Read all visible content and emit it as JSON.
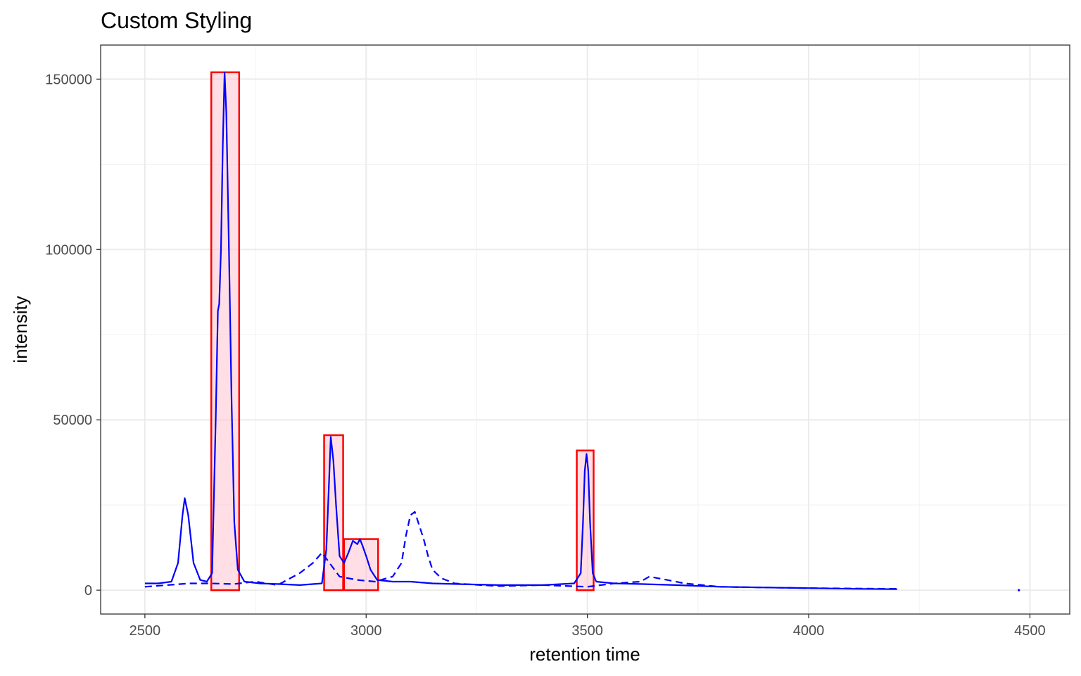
{
  "chart_data": {
    "type": "line",
    "title": "Custom Styling",
    "xlabel": "retention time",
    "ylabel": "intensity",
    "xlim": [
      2400,
      4590
    ],
    "ylim": [
      -7000,
      160000
    ],
    "x_ticks": [
      "2500",
      "3000",
      "3500",
      "4000",
      "4500"
    ],
    "y_ticks": [
      "0",
      "50000",
      "100000",
      "150000"
    ],
    "grid": true,
    "legend": "none",
    "colors": {
      "line": "#0000ff",
      "rect_stroke": "#ff0000",
      "rect_fill": "#ffc0cb"
    },
    "series": [
      {
        "style": "solid",
        "x": [
          2500,
          2530,
          2560,
          2575,
          2585,
          2590,
          2598,
          2610,
          2625,
          2640,
          2652,
          2660,
          2665,
          2668,
          2672,
          2676,
          2680,
          2684,
          2690,
          2696,
          2702,
          2710,
          2725,
          2760,
          2800,
          2850,
          2900,
          2910,
          2915,
          2920,
          2926,
          2932,
          2940,
          2950,
          2960,
          2970,
          2975,
          2980,
          2986,
          2992,
          3000,
          3010,
          3025,
          3060,
          3100,
          3150,
          3200,
          3300,
          3400,
          3470,
          3485,
          3490,
          3494,
          3498,
          3502,
          3506,
          3512,
          3520,
          3560,
          3620,
          3700,
          3800,
          3900,
          4000,
          4100,
          4200
        ],
        "y": [
          2000,
          2000,
          2500,
          8000,
          22000,
          27000,
          22000,
          8000,
          3000,
          2500,
          5000,
          50000,
          82000,
          84000,
          100000,
          130000,
          152000,
          140000,
          100000,
          55000,
          20000,
          6000,
          2500,
          2000,
          1800,
          1500,
          2000,
          12000,
          28000,
          45000,
          38000,
          25000,
          10000,
          8000,
          11000,
          14500,
          14000,
          13500,
          15000,
          13000,
          10000,
          6000,
          3000,
          2500,
          2500,
          2000,
          1800,
          1500,
          1500,
          2000,
          5000,
          20000,
          35000,
          40000,
          35000,
          20000,
          5000,
          2500,
          2000,
          1800,
          1500,
          1000,
          800,
          600,
          400,
          300
        ]
      },
      {
        "style": "dashed",
        "x": [
          2500,
          2550,
          2600,
          2650,
          2700,
          2750,
          2800,
          2850,
          2880,
          2900,
          2940,
          2980,
          3020,
          3060,
          3080,
          3090,
          3100,
          3110,
          3120,
          3130,
          3140,
          3150,
          3170,
          3200,
          3260,
          3300,
          3400,
          3500,
          3560,
          3620,
          3640,
          3680,
          3720,
          3760,
          3800,
          3900,
          4000,
          4100,
          4200
        ],
        "y": [
          1000,
          1500,
          2000,
          2000,
          1800,
          2500,
          1500,
          5000,
          8000,
          11000,
          4000,
          3000,
          2500,
          4000,
          8000,
          16000,
          22000,
          23000,
          19000,
          15000,
          10000,
          6000,
          3500,
          2000,
          1500,
          1200,
          1500,
          1000,
          2000,
          2500,
          4000,
          3000,
          2000,
          1500,
          1000,
          800,
          600,
          500,
          400
        ]
      }
    ],
    "rects": [
      {
        "xmin": 2650,
        "xmax": 2713,
        "ymin": 0,
        "ymax": 152000
      },
      {
        "xmin": 2905,
        "xmax": 2948,
        "ymin": 0,
        "ymax": 45500
      },
      {
        "xmin": 2950,
        "xmax": 3027,
        "ymin": 0,
        "ymax": 15000
      },
      {
        "xmin": 3476,
        "xmax": 3514,
        "ymin": 0,
        "ymax": 41000
      }
    ],
    "points": [
      {
        "x": 4475,
        "y": 0
      }
    ]
  }
}
